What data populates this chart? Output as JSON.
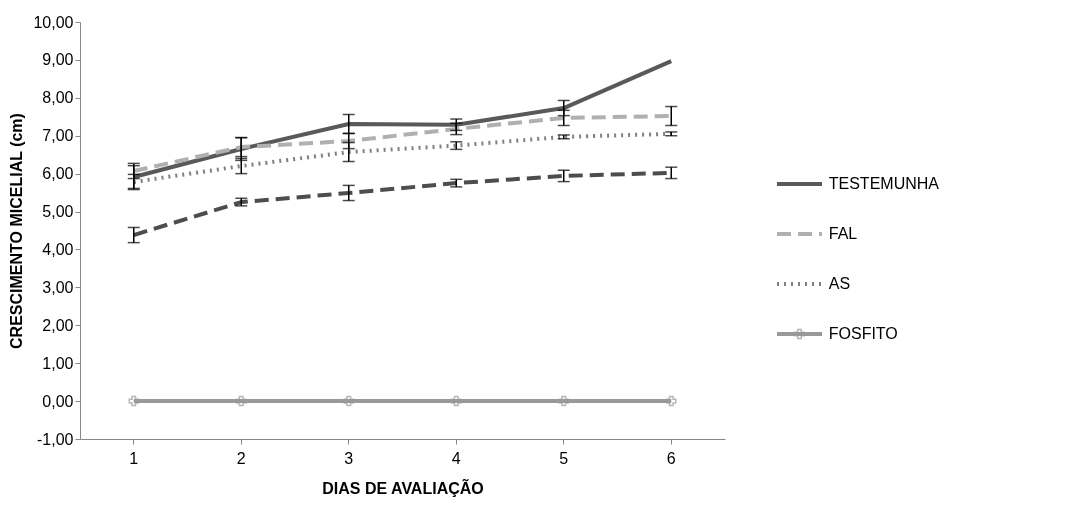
{
  "chart_data": {
    "type": "line",
    "xlabel": "DIAS DE AVALIAÇÃO",
    "ylabel": "CRESCIMENTO MICELIAL (cm)",
    "categories": [
      "1",
      "2",
      "3",
      "4",
      "5",
      "6"
    ],
    "series": [
      {
        "name": "TESTEMUNHA",
        "color": "#595959",
        "line_style": "solid",
        "values": [
          5.91,
          6.65,
          7.31,
          7.29,
          7.73,
          8.97
        ],
        "errors": [
          0.3,
          0.3,
          0.25,
          0.15,
          0.2,
          null
        ]
      },
      {
        "name": "FAL",
        "color": "#b0b0b0",
        "line_style": "dashed",
        "values": [
          6.07,
          6.7,
          6.86,
          7.18,
          7.47,
          7.52
        ],
        "errors": [
          0.2,
          0.25,
          0.2,
          0.15,
          0.2,
          0.25
        ]
      },
      {
        "name": "AS",
        "color": "#808080",
        "line_style": "dotted",
        "values": [
          5.78,
          6.2,
          6.57,
          6.74,
          6.97,
          7.05
        ],
        "errors": [
          0.2,
          0.2,
          0.25,
          0.1,
          0.05,
          0.05
        ]
      },
      {
        "color": "#4d4d4d",
        "line_style": "dashed",
        "values": [
          4.38,
          5.25,
          5.49,
          5.75,
          5.94,
          6.02
        ],
        "errors": [
          0.2,
          0.1,
          0.2,
          0.1,
          0.15,
          0.15
        ]
      },
      {
        "name": "FOSFITO",
        "color": "#999999",
        "line_style": "solid",
        "marker": "cross",
        "values": [
          0,
          0,
          0,
          0,
          0,
          0
        ]
      }
    ],
    "ylim": [
      -1,
      10
    ],
    "yticks": [
      {
        "value": -1,
        "label": "-1,00"
      },
      {
        "value": 0,
        "label": "0,00"
      },
      {
        "value": 1,
        "label": "1,00"
      },
      {
        "value": 2,
        "label": "2,00"
      },
      {
        "value": 3,
        "label": "3,00"
      },
      {
        "value": 4,
        "label": "4,00"
      },
      {
        "value": 5,
        "label": "5,00"
      },
      {
        "value": 6,
        "label": "6,00"
      },
      {
        "value": 7,
        "label": "7,00"
      },
      {
        "value": 8,
        "label": "8,00"
      },
      {
        "value": 9,
        "label": "9,00"
      },
      {
        "value": 10,
        "label": "10,00"
      }
    ],
    "grid": false,
    "legend": "right"
  }
}
